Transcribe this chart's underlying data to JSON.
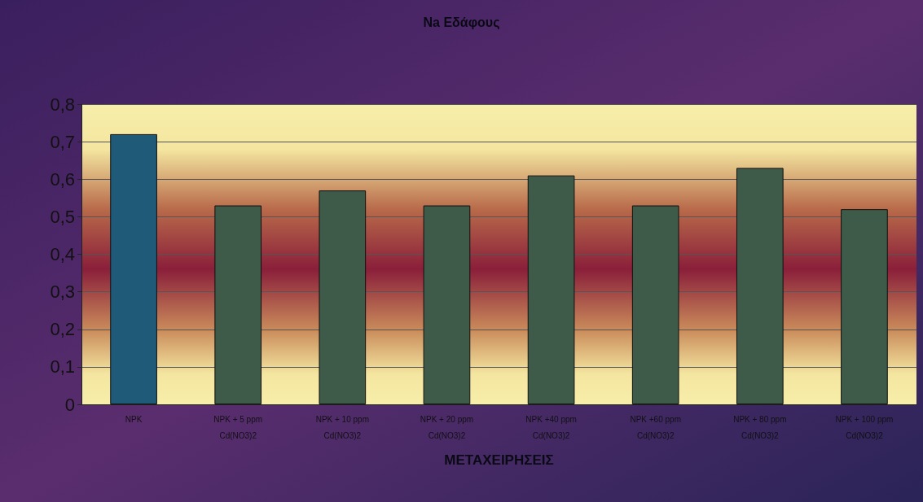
{
  "chart_data": {
    "type": "bar",
    "title": "Na Εδάφους",
    "xlabel": "ΜΕΤΑΧΕΙΡΗΣΕΙΣ",
    "categories": [
      "NPK",
      "NPK + 5 ppm Cd(NO3)2",
      "NPK + 10 ppm Cd(NO3)2",
      "NPK + 20 ppm Cd(NO3)2",
      "NPK +40 ppm Cd(NO3)2",
      "NPK +60 ppm Cd(NO3)2",
      "NPK + 80 ppm Cd(NO3)2",
      "NPK + 100 ppm Cd(NO3)2"
    ],
    "values": [
      0.72,
      0.53,
      0.57,
      0.53,
      0.61,
      0.53,
      0.63,
      0.52
    ],
    "colors": [
      "#1f5a78",
      "#3e5a48",
      "#3e5a48",
      "#3e5a48",
      "#3e5a48",
      "#3e5a48",
      "#3e5a48",
      "#3e5a48"
    ],
    "ylim": [
      0,
      0.8
    ],
    "yticks": [
      0,
      {
        "value": 0.1,
        "label": "0,1"
      },
      {
        "value": 0.2,
        "label": "0,2"
      },
      {
        "value": 0.3,
        "label": "0,3"
      },
      {
        "value": 0.4,
        "label": "0,4"
      },
      {
        "value": 0.5,
        "label": "0,5"
      },
      {
        "value": 0.6,
        "label": "0,6"
      },
      {
        "value": 0.7,
        "label": "0,7"
      },
      {
        "value": 0.8,
        "label": "0,8"
      }
    ],
    "grid": "y"
  }
}
